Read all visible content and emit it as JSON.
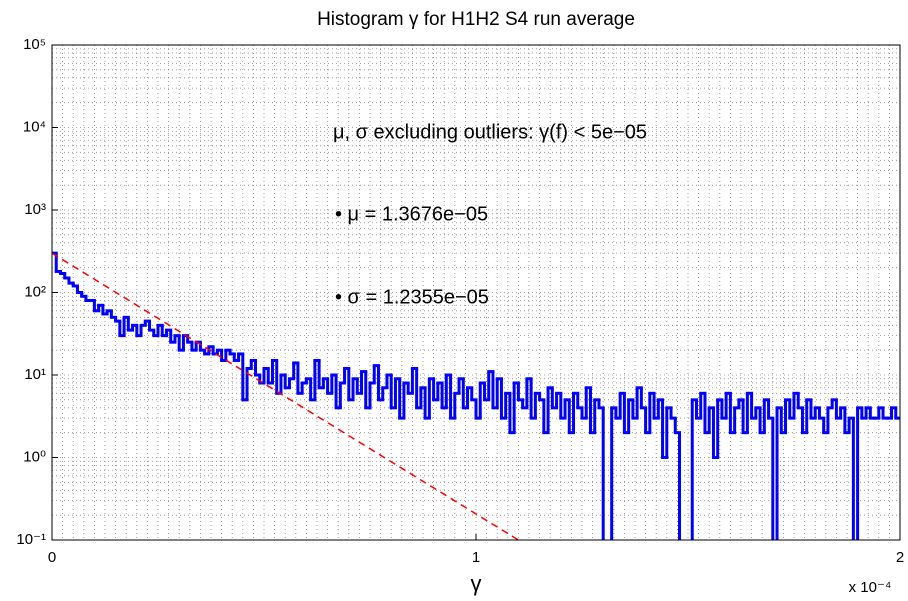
{
  "chart_data": {
    "type": "histogram",
    "title": "Histogram γ for H1H2 S4 run average",
    "xlabel": "γ",
    "x_multiplier": "x 10⁻⁴",
    "annotations": [
      "μ, σ excluding outliers: γ(f) < 5e−05",
      "• μ = 1.3676e−05",
      "• σ = 1.2355e−05"
    ],
    "log_y": true,
    "grid": true,
    "minor_grid": true,
    "color": "#0000ff",
    "xlim": [
      0,
      0.0002
    ],
    "xticks": [
      {
        "value": 0,
        "label": "0"
      },
      {
        "value": 0.0001,
        "label": "1"
      },
      {
        "value": 0.0002,
        "label": "2"
      }
    ],
    "ylim": [
      0.1,
      100000
    ],
    "yticks": [
      {
        "value": 0.1,
        "label": "10⁻¹"
      },
      {
        "value": 1,
        "label": "10⁰"
      },
      {
        "value": 10,
        "label": "10¹"
      },
      {
        "value": 100,
        "label": "10²"
      },
      {
        "value": 1000,
        "label": "10³"
      },
      {
        "value": 10000,
        "label": "10⁴"
      },
      {
        "value": 100000,
        "label": "10⁵"
      }
    ],
    "bins": [
      0,
      1e-06,
      2e-06,
      3e-06,
      4e-06,
      5e-06,
      6e-06,
      7e-06,
      8e-06,
      9e-06,
      1e-05,
      1.1e-05,
      1.2e-05,
      1.3e-05,
      1.4e-05,
      1.5e-05,
      1.6e-05,
      1.7e-05,
      1.8e-05,
      1.9e-05,
      2e-05,
      2.1e-05,
      2.2e-05,
      2.3e-05,
      2.4e-05,
      2.5e-05,
      2.6e-05,
      2.7e-05,
      2.8e-05,
      2.9e-05,
      3e-05,
      3.1e-05,
      3.2e-05,
      3.3e-05,
      3.4e-05,
      3.5e-05,
      3.6e-05,
      3.7e-05,
      3.8e-05,
      3.9e-05,
      4e-05,
      4.1e-05,
      4.2e-05,
      4.3e-05,
      4.4e-05,
      4.5e-05,
      4.6e-05,
      4.7e-05,
      4.8e-05,
      4.9e-05,
      5e-05,
      5.1e-05,
      5.2e-05,
      5.3e-05,
      5.4e-05,
      5.5e-05,
      5.6e-05,
      5.7e-05,
      5.8e-05,
      5.9e-05,
      6e-05,
      6.1e-05,
      6.2e-05,
      6.3e-05,
      6.4e-05,
      6.5e-05,
      6.6e-05,
      6.7e-05,
      6.8e-05,
      6.9e-05,
      7e-05,
      7.1e-05,
      7.2e-05,
      7.3e-05,
      7.4e-05,
      7.5e-05,
      7.6e-05,
      7.7e-05,
      7.8e-05,
      7.9e-05,
      8e-05,
      8.1e-05,
      8.2e-05,
      8.3e-05,
      8.4e-05,
      8.5e-05,
      8.6e-05,
      8.7e-05,
      8.8e-05,
      8.9e-05,
      9e-05,
      9.1e-05,
      9.2e-05,
      9.3e-05,
      9.4e-05,
      9.5e-05,
      9.6e-05,
      9.7e-05,
      9.8e-05,
      9.9e-05,
      0.0001,
      0.000101,
      0.000102,
      0.000103,
      0.000104,
      0.000105,
      0.000106,
      0.000107,
      0.000108,
      0.000109,
      0.00011,
      0.000111,
      0.000112,
      0.000113,
      0.000114,
      0.000115,
      0.000116,
      0.000117,
      0.000118,
      0.000119,
      0.00012,
      0.000121,
      0.000122,
      0.000123,
      0.000124,
      0.000125,
      0.000126,
      0.000127,
      0.000128,
      0.000129,
      0.00013,
      0.000131,
      0.000132,
      0.000133,
      0.000134,
      0.000135,
      0.000136,
      0.000137,
      0.000138,
      0.000139,
      0.00014,
      0.000141,
      0.000142,
      0.000143,
      0.000144,
      0.000145,
      0.000146,
      0.000147,
      0.000148,
      0.000149,
      0.00015,
      0.000151,
      0.000152,
      0.000153,
      0.000154,
      0.000155,
      0.000156,
      0.000157,
      0.000158,
      0.000159,
      0.00016,
      0.000161,
      0.000162,
      0.000163,
      0.000164,
      0.000165,
      0.000166,
      0.000167,
      0.000168,
      0.000169,
      0.00017,
      0.000171,
      0.000172,
      0.000173,
      0.000174,
      0.000175,
      0.000176,
      0.000177,
      0.000178,
      0.000179,
      0.00018,
      0.000181,
      0.000182,
      0.000183,
      0.000184,
      0.000185,
      0.000186,
      0.000187,
      0.000188,
      0.000189,
      0.00019,
      0.000191,
      0.000192,
      0.000193,
      0.000194,
      0.000195,
      0.000196,
      0.000197,
      0.000198,
      0.000199,
      0.0002
    ],
    "values": [
      300,
      180,
      170,
      150,
      130,
      120,
      100,
      90,
      80,
      80,
      60,
      70,
      55,
      60,
      50,
      45,
      30,
      50,
      35,
      40,
      30,
      40,
      45,
      35,
      30,
      40,
      30,
      35,
      25,
      30,
      20,
      30,
      25,
      20,
      25,
      20,
      18,
      22,
      18,
      20,
      15,
      20,
      18,
      15,
      18,
      5,
      12,
      15,
      10,
      8,
      12,
      8,
      15,
      6,
      10,
      7,
      9,
      14,
      6,
      8,
      9,
      5,
      15,
      7,
      9,
      6,
      10,
      4,
      8,
      12,
      5,
      9,
      6,
      11,
      4,
      8,
      13,
      5,
      7,
      10,
      4,
      9,
      3,
      8,
      6,
      12,
      4,
      7,
      3,
      9,
      5,
      8,
      4,
      10,
      3,
      6,
      9,
      4,
      7,
      5,
      3,
      8,
      5,
      11,
      4,
      9,
      3,
      6,
      2,
      8,
      5,
      4,
      9,
      3,
      6,
      5,
      2,
      7,
      4,
      6,
      3,
      5,
      2,
      6,
      4,
      3,
      7,
      2,
      5,
      4,
      0,
      0,
      4,
      3,
      6,
      2,
      5,
      3,
      7,
      4,
      2,
      6,
      3,
      5,
      1,
      4,
      3,
      2,
      0,
      0,
      0,
      5,
      3,
      6,
      2,
      4,
      1,
      5,
      3,
      6,
      2,
      4,
      5,
      2,
      6,
      3,
      4,
      2,
      5,
      3,
      0,
      4,
      2,
      5,
      3,
      6,
      4,
      2,
      5,
      3,
      4,
      3,
      2,
      4,
      5,
      3,
      4,
      2,
      3,
      0,
      4,
      3,
      4,
      3,
      3,
      4,
      3,
      3,
      4,
      3
    ],
    "fit": {
      "color": "#ff0000",
      "x": [
        0,
        0.00011
      ],
      "values": [
        300,
        0.1
      ]
    }
  }
}
